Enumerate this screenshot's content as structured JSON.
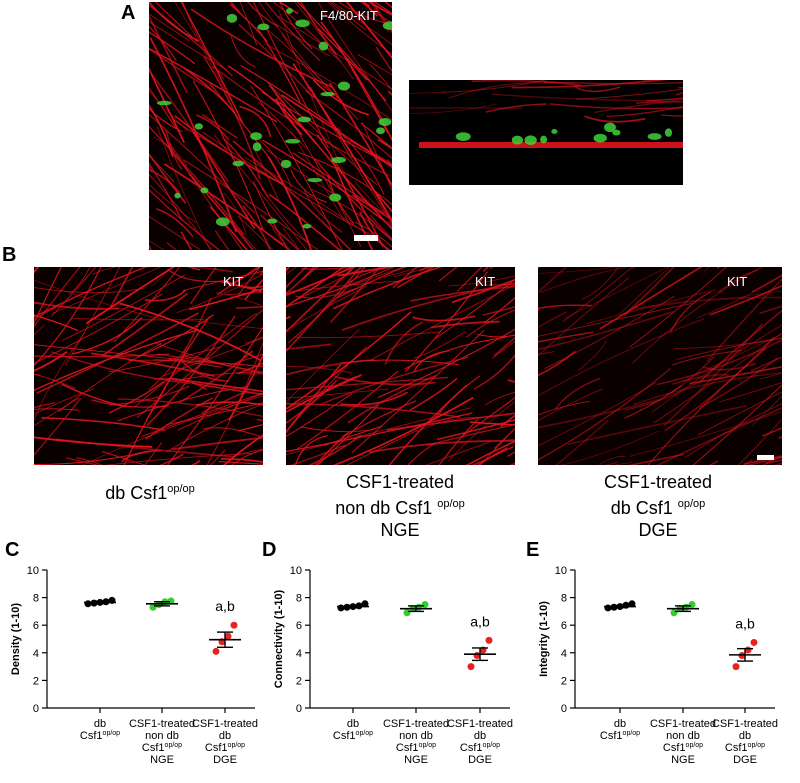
{
  "panel_a": {
    "letter": "A",
    "label": "F4/80-KIT"
  },
  "panel_b": {
    "letter": "B",
    "images": [
      {
        "label": "KIT",
        "caption": [
          "db Csf1",
          "op/op"
        ]
      },
      {
        "label": "KIT",
        "caption": [
          "CSF1-treated",
          "non db Csf1 ",
          "op/op",
          "NGE"
        ]
      },
      {
        "label": "KIT",
        "caption": [
          "CSF1-treated",
          "db Csf1 ",
          "op/op",
          "DGE"
        ]
      }
    ]
  },
  "colors": {
    "fiber_red": "#e0141e",
    "green_cells": "#3fd13a",
    "black_group": "#000000",
    "green_group": "#33cc33",
    "red_group": "#e8231f"
  },
  "chart_data": [
    {
      "panel": "C",
      "type": "scatter",
      "ylabel": "Density (1-10)",
      "ylim": [
        0,
        10
      ],
      "yticks": [
        0,
        2,
        4,
        6,
        8,
        10
      ],
      "groups": [
        {
          "label": [
            "db",
            "Csf1op/op"
          ],
          "color": "black",
          "mean": 7.65,
          "sem": 0.1,
          "points": [
            7.55,
            7.6,
            7.65,
            7.7,
            7.8
          ]
        },
        {
          "label": [
            "CSF1-treated",
            "non db",
            "Csf1op/op",
            "NGE"
          ],
          "color": "green",
          "mean": 7.55,
          "sem": 0.15,
          "points": [
            7.3,
            7.5,
            7.7,
            7.75
          ]
        },
        {
          "label": [
            "CSF1-treated",
            "db",
            "Csf1op/op",
            "DGE"
          ],
          "color": "red",
          "mean": 4.95,
          "sem": 0.55,
          "points": [
            4.1,
            4.8,
            5.2,
            6.0
          ]
        }
      ],
      "annotation": "a,b"
    },
    {
      "panel": "D",
      "type": "scatter",
      "ylabel": "Connectivity (1-10)",
      "ylim": [
        0,
        10
      ],
      "yticks": [
        0,
        2,
        4,
        6,
        8,
        10
      ],
      "groups": [
        {
          "label": [
            "db",
            "Csf1op/op"
          ],
          "color": "black",
          "mean": 7.35,
          "sem": 0.08,
          "points": [
            7.25,
            7.3,
            7.35,
            7.4,
            7.55
          ]
        },
        {
          "label": [
            "CSF1-treated",
            "non db",
            "Csf1op/op",
            "NGE"
          ],
          "color": "green",
          "mean": 7.2,
          "sem": 0.2,
          "points": [
            6.9,
            7.2,
            7.3,
            7.5
          ]
        },
        {
          "label": [
            "CSF1-treated",
            "db",
            "Csf1op/op",
            "DGE"
          ],
          "color": "red",
          "mean": 3.9,
          "sem": 0.45,
          "points": [
            3.0,
            3.8,
            4.2,
            4.9
          ]
        }
      ],
      "annotation": "a,b"
    },
    {
      "panel": "E",
      "type": "scatter",
      "ylabel": "Integrity (1-10)",
      "ylim": [
        0,
        10
      ],
      "yticks": [
        0,
        2,
        4,
        6,
        8,
        10
      ],
      "groups": [
        {
          "label": [
            "db",
            "Csf1op/op"
          ],
          "color": "black",
          "mean": 7.35,
          "sem": 0.08,
          "points": [
            7.25,
            7.3,
            7.35,
            7.45,
            7.55
          ]
        },
        {
          "label": [
            "CSF1-treated",
            "non db",
            "Csf1op/op",
            "NGE"
          ],
          "color": "green",
          "mean": 7.2,
          "sem": 0.2,
          "points": [
            6.9,
            7.2,
            7.3,
            7.5
          ]
        },
        {
          "label": [
            "CSF1-treated",
            "db",
            "Csf1op/op",
            "DGE"
          ],
          "color": "red",
          "mean": 3.85,
          "sem": 0.45,
          "points": [
            3.0,
            3.8,
            4.2,
            4.75
          ]
        }
      ],
      "annotation": "a,b"
    }
  ]
}
